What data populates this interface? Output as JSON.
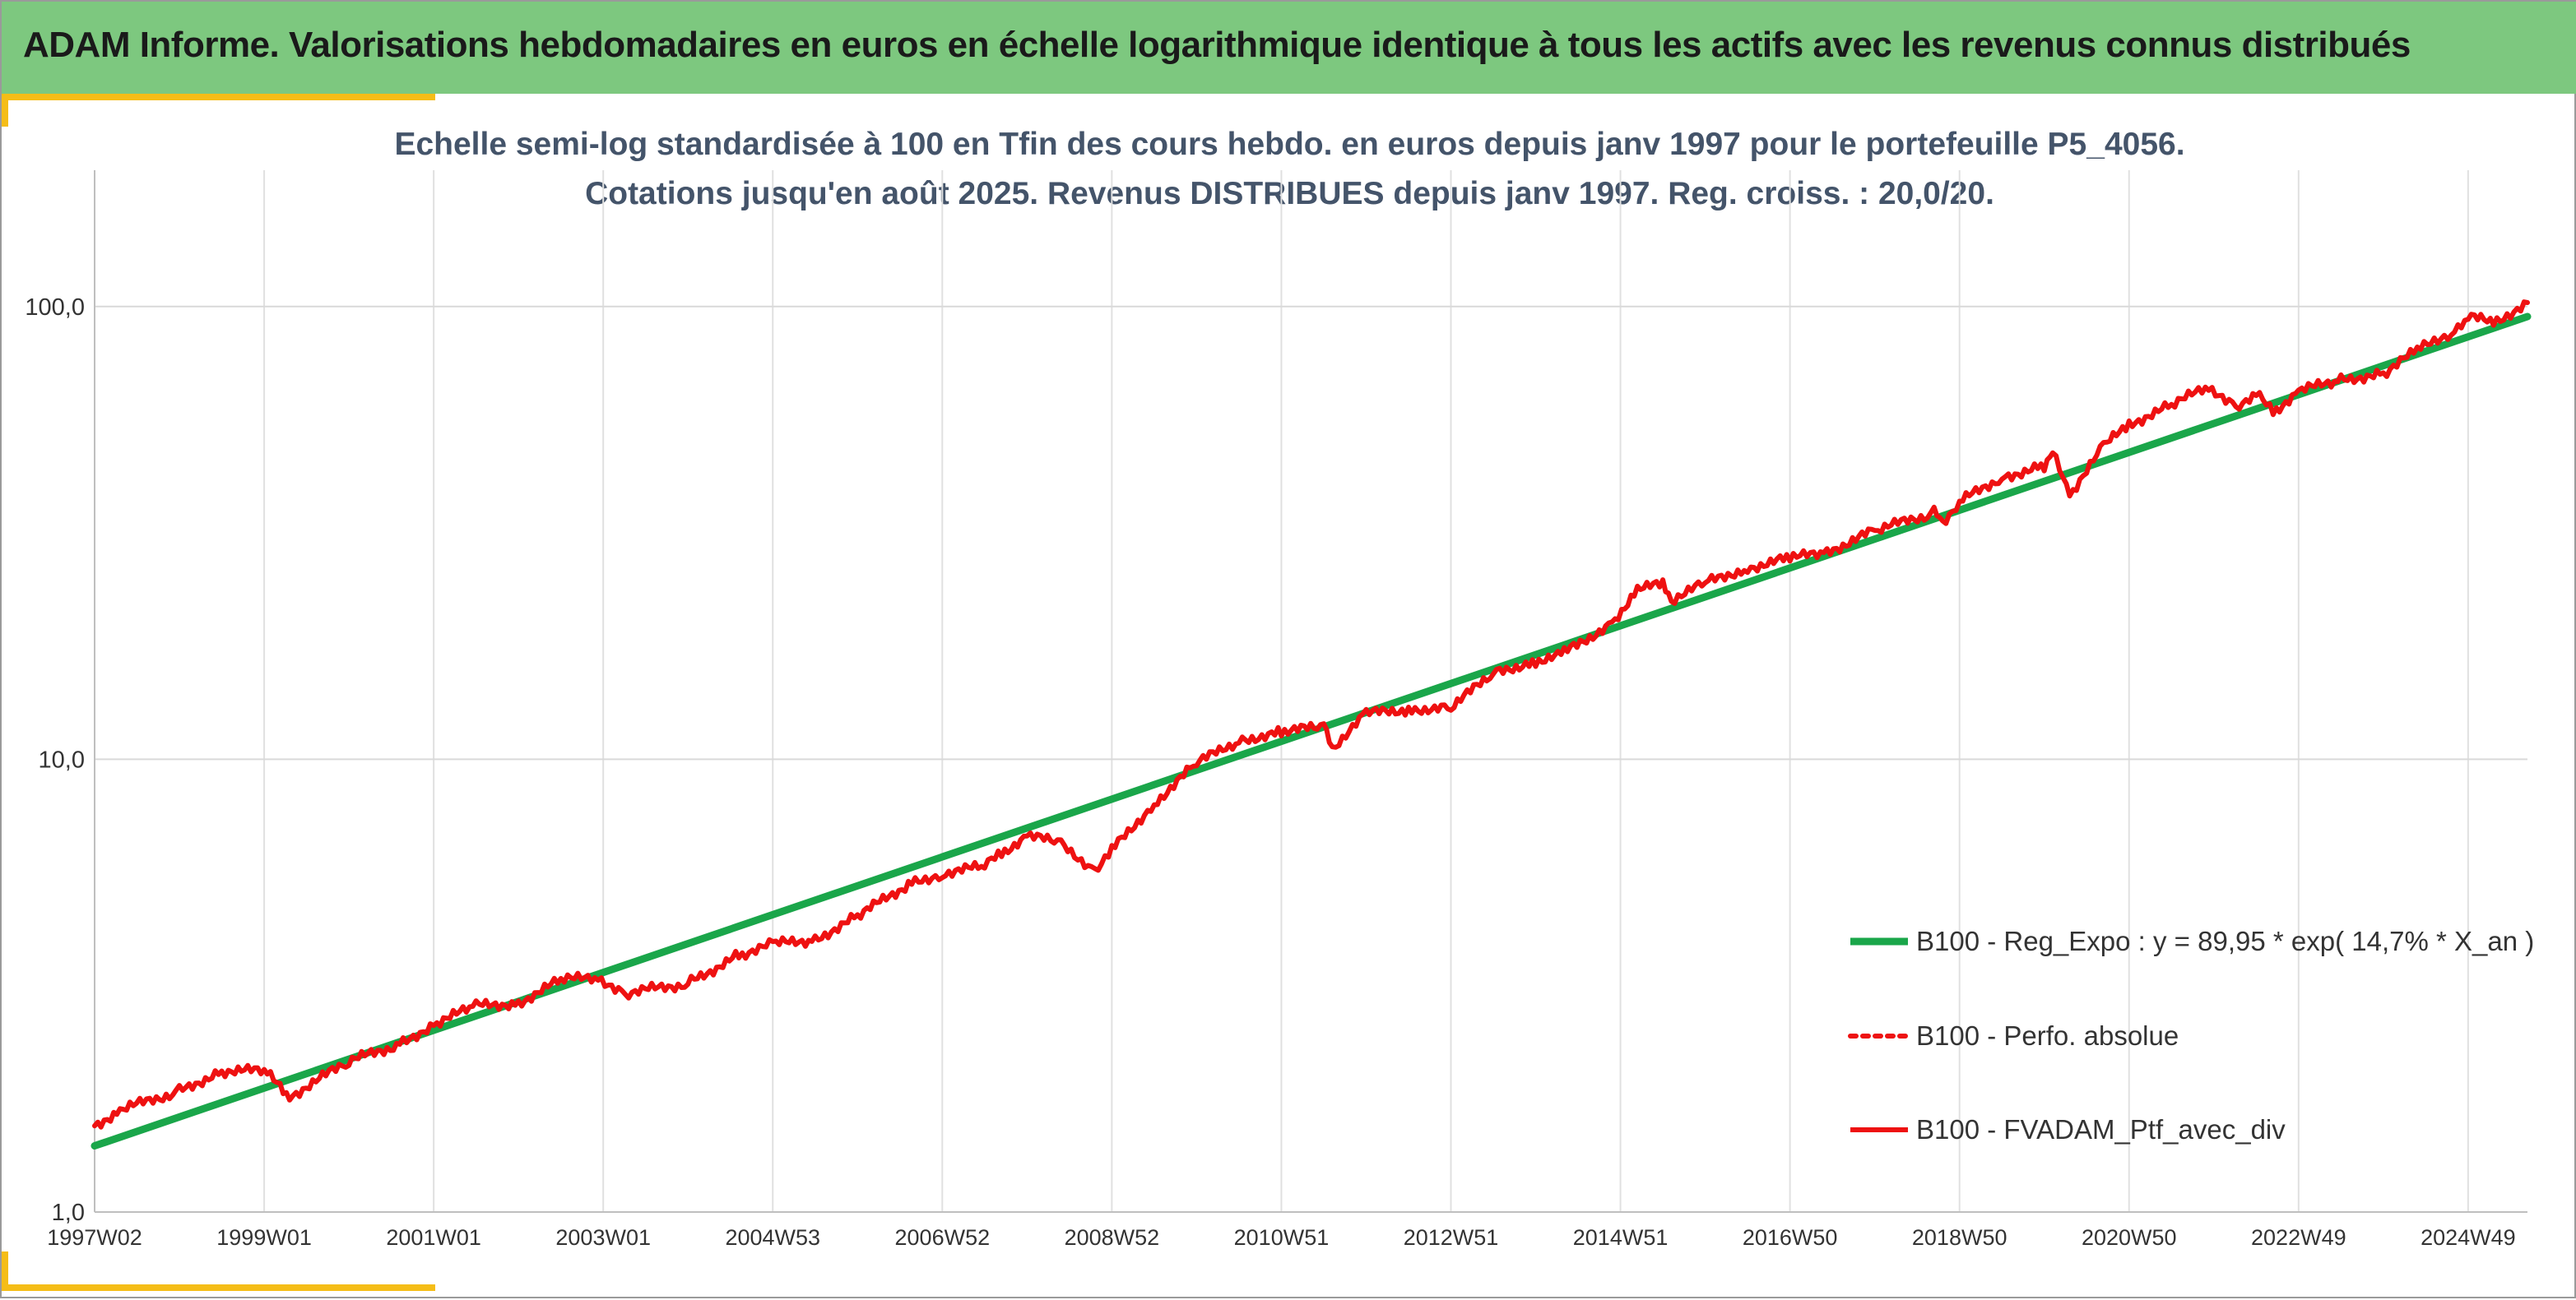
{
  "banner": {
    "title": "ADAM Informe. Valorisations hebdomadaires en euros en échelle logarithmique identique à tous les actifs avec les revenus connus distribués"
  },
  "colors": {
    "banner_bg": "#7dc87f",
    "accent": "#f5bd17",
    "regression": "#1aa64a",
    "portfolio": "#ee1111",
    "title_text": "#44546a"
  },
  "chart_data": {
    "type": "line",
    "title": "Echelle semi-log standardisée à 100 en Tfin des cours hebdo. en euros depuis janv 1997 pour le portefeuille P5_4056.",
    "subtitle": "Cotations jusqu'en août 2025. Revenus DISTRIBUES depuis janv 1997. Reg. croiss. : 20,0/20.",
    "y_scale": "log",
    "ylim": [
      1,
      200
    ],
    "xlim": [
      1997.0,
      2025.7
    ],
    "y_ticks": [
      1,
      10,
      100
    ],
    "y_tick_labels": [
      "1,0",
      "10,0",
      "100,0"
    ],
    "x_ticks": [
      1997.0,
      1999.0,
      2001.0,
      2003.0,
      2005.0,
      2007.0,
      2009.0,
      2011.0,
      2013.0,
      2015.0,
      2017.0,
      2019.0,
      2021.0,
      2023.0,
      2025.0
    ],
    "x_tick_labels": [
      "1997W02",
      "1999W01",
      "2001W01",
      "2003W01",
      "2004W53",
      "2006W52",
      "2008W52",
      "2010W51",
      "2012W51",
      "2014W51",
      "2016W50",
      "2018W50",
      "2020W50",
      "2022W49",
      "2024W49"
    ],
    "grid": true,
    "legend_position": "right",
    "series": [
      {
        "name": "B100 - Reg_Expo : y = 89,95 * exp( 14,7% *  X_an )",
        "style": "solid-green",
        "x": [
          1997.0,
          2025.7
        ],
        "values": [
          1.4,
          95
        ]
      },
      {
        "name": "B100 - Perfo. absolue",
        "style": "dotted-red",
        "x": [],
        "values": []
      },
      {
        "name": "B100 - FVADAM_Ptf_avec_div",
        "style": "solid-red",
        "x": [
          1997.0,
          1997.3,
          1998.0,
          1998.5,
          1999.0,
          1999.3,
          2000.0,
          2000.6,
          2001.0,
          2001.5,
          2002.0,
          2002.5,
          2002.9,
          2003.3,
          2004.0,
          2004.6,
          2005.0,
          2005.5,
          2006.0,
          2006.6,
          2007.0,
          2007.5,
          2007.7,
          2008.0,
          2008.4,
          2008.8,
          2009.0,
          2009.5,
          2010.0,
          2010.5,
          2011.0,
          2011.5,
          2011.6,
          2012.0,
          2012.5,
          2013.0,
          2013.5,
          2014.0,
          2014.3,
          2014.9,
          2015.2,
          2015.5,
          2015.6,
          2016.0,
          2016.5,
          2017.0,
          2017.4,
          2018.0,
          2018.7,
          2018.8,
          2019.0,
          2019.5,
          2020.0,
          2020.1,
          2020.3,
          2020.7,
          2021.0,
          2021.5,
          2021.9,
          2022.3,
          2022.5,
          2022.7,
          2023.0,
          2023.5,
          2024.0,
          2024.4,
          2024.8,
          2025.0,
          2025.3,
          2025.7
        ],
        "values": [
          1.55,
          1.68,
          1.85,
          2.05,
          2.05,
          1.8,
          2.15,
          2.35,
          2.6,
          2.85,
          2.9,
          3.25,
          3.3,
          3.05,
          3.2,
          3.7,
          3.9,
          4.0,
          4.5,
          5.3,
          5.6,
          5.8,
          6.2,
          6.8,
          6.5,
          5.7,
          6.3,
          8.0,
          9.8,
          11.0,
          11.5,
          11.8,
          10.6,
          12.6,
          12.9,
          13.0,
          15.5,
          16.5,
          17.0,
          20.0,
          23.8,
          24.3,
          22.5,
          24.5,
          26.5,
          27.8,
          28.5,
          32.0,
          35.0,
          33.5,
          37.0,
          42.0,
          44.5,
          47.5,
          38.5,
          49.0,
          55.0,
          60.5,
          66.0,
          61.0,
          64.0,
          58.5,
          65.0,
          69.0,
          71.0,
          80.0,
          88.0,
          95.0,
          92.0,
          102.0
        ]
      }
    ]
  }
}
